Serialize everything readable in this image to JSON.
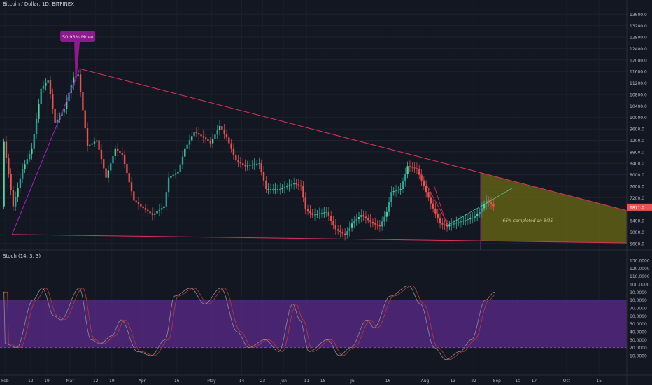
{
  "header": {
    "title": "Bitcoin / Dollar, 1D, BITFINEX"
  },
  "indicator": {
    "title": "Stoch (14, 3, 3)"
  },
  "colors": {
    "background": "#131722",
    "up": "#26a69a",
    "up_bright": "#4fd49b",
    "down": "#ef5350",
    "trendline": "#e0315a",
    "wedge_fill": "#6b6a14",
    "stoch_band": "#5c2a8c",
    "stoch_k": "#8d8d9a",
    "stoch_d": "#c0392b",
    "callout": "#8e1b8e",
    "price_tag": "#ef5350"
  },
  "chart_data": {
    "type": "candlestick",
    "symbol": "Bitcoin / Dollar",
    "interval": "1D",
    "exchange": "BITFINEX",
    "y_axis": {
      "labels": [
        "13600.0",
        "13200.0",
        "12800.0",
        "12400.0",
        "12000.0",
        "11600.0",
        "11200.0",
        "10800.0",
        "10400.0",
        "10000.0",
        "9600.0",
        "9200.0",
        "8800.0",
        "8400.0",
        "8000.0",
        "7600.0",
        "7200.0",
        "6800.0",
        "6400.0",
        "6000.0",
        "5600.0"
      ],
      "ylim": [
        5500,
        13900
      ]
    },
    "x_axis": {
      "labels": [
        "Feb",
        "12",
        "19",
        "Mar",
        "12",
        "19",
        "Apr",
        "16",
        "May",
        "14",
        "23",
        "Jun",
        "11",
        "18",
        "Jul",
        "16",
        "Aug",
        "13",
        "22",
        "Sep",
        "10",
        "17",
        "Oct",
        "15"
      ]
    },
    "current_price": "6871.0",
    "anchor_closes": [
      [
        "2018-02-01",
        9150
      ],
      [
        "2018-02-05",
        6900
      ],
      [
        "2018-02-09",
        8200
      ],
      [
        "2018-02-13",
        8900
      ],
      [
        "2018-02-17",
        11000
      ],
      [
        "2018-02-20",
        11300
      ],
      [
        "2018-02-23",
        9800
      ],
      [
        "2018-02-27",
        10300
      ],
      [
        "2018-03-03",
        11400
      ],
      [
        "2018-03-05",
        11500
      ],
      [
        "2018-03-09",
        9000
      ],
      [
        "2018-03-13",
        9200
      ],
      [
        "2018-03-17",
        7900
      ],
      [
        "2018-03-21",
        8900
      ],
      [
        "2018-03-24",
        8700
      ],
      [
        "2018-03-29",
        7100
      ],
      [
        "2018-04-01",
        6900
      ],
      [
        "2018-04-06",
        6600
      ],
      [
        "2018-04-11",
        6900
      ],
      [
        "2018-04-13",
        7900
      ],
      [
        "2018-04-17",
        8100
      ],
      [
        "2018-04-20",
        8900
      ],
      [
        "2018-04-24",
        9500
      ],
      [
        "2018-04-28",
        9300
      ],
      [
        "2018-05-01",
        9100
      ],
      [
        "2018-05-05",
        9700
      ],
      [
        "2018-05-08",
        9300
      ],
      [
        "2018-05-12",
        8500
      ],
      [
        "2018-05-16",
        8300
      ],
      [
        "2018-05-22",
        8400
      ],
      [
        "2018-05-25",
        7500
      ],
      [
        "2018-05-31",
        7500
      ],
      [
        "2018-06-06",
        7700
      ],
      [
        "2018-06-09",
        7600
      ],
      [
        "2018-06-11",
        6800
      ],
      [
        "2018-06-14",
        6600
      ],
      [
        "2018-06-20",
        6700
      ],
      [
        "2018-06-24",
        6100
      ],
      [
        "2018-06-28",
        5900
      ],
      [
        "2018-07-01",
        6300
      ],
      [
        "2018-07-05",
        6600
      ],
      [
        "2018-07-10",
        6300
      ],
      [
        "2018-07-13",
        6200
      ],
      [
        "2018-07-16",
        6700
      ],
      [
        "2018-07-18",
        7400
      ],
      [
        "2018-07-22",
        7500
      ],
      [
        "2018-07-25",
        8300
      ],
      [
        "2018-07-29",
        8200
      ],
      [
        "2018-08-01",
        7600
      ],
      [
        "2018-08-04",
        7000
      ],
      [
        "2018-08-08",
        6300
      ],
      [
        "2018-08-11",
        6200
      ],
      [
        "2018-08-14",
        6300
      ],
      [
        "2018-08-18",
        6400
      ],
      [
        "2018-08-22",
        6500
      ],
      [
        "2018-08-25",
        6700
      ],
      [
        "2018-08-28",
        7100
      ],
      [
        "2018-08-31",
        6900
      ]
    ],
    "annotations": [
      {
        "text": "50.93% Move",
        "type": "callout"
      },
      {
        "text": "66% completed on 8/25",
        "type": "label"
      }
    ],
    "stochastic": {
      "title": "Stoch (14, 3, 3)",
      "y_axis_labels": [
        "130.0000",
        "120.0000",
        "110.0000",
        "100.0000",
        "90.0000",
        "80.0000",
        "70.0000",
        "60.0000",
        "50.0000",
        "40.0000",
        "30.0000",
        "20.0000",
        "10.0000"
      ],
      "band": [
        20,
        80
      ],
      "k_anchors": [
        [
          "2018-02-01",
          25
        ],
        [
          "2018-02-06",
          20
        ],
        [
          "2018-02-13",
          80
        ],
        [
          "2018-02-17",
          95
        ],
        [
          "2018-02-22",
          60
        ],
        [
          "2018-02-25",
          55
        ],
        [
          "2018-03-05",
          95
        ],
        [
          "2018-03-10",
          30
        ],
        [
          "2018-03-14",
          25
        ],
        [
          "2018-03-19",
          35
        ],
        [
          "2018-03-23",
          55
        ],
        [
          "2018-03-30",
          15
        ],
        [
          "2018-04-05",
          10
        ],
        [
          "2018-04-11",
          30
        ],
        [
          "2018-04-15",
          85
        ],
        [
          "2018-04-22",
          95
        ],
        [
          "2018-04-28",
          75
        ],
        [
          "2018-05-05",
          95
        ],
        [
          "2018-05-12",
          40
        ],
        [
          "2018-05-17",
          20
        ],
        [
          "2018-05-24",
          30
        ],
        [
          "2018-05-30",
          15
        ],
        [
          "2018-06-05",
          75
        ],
        [
          "2018-06-08",
          55
        ],
        [
          "2018-06-12",
          15
        ],
        [
          "2018-06-20",
          30
        ],
        [
          "2018-06-25",
          10
        ],
        [
          "2018-06-30",
          20
        ],
        [
          "2018-07-07",
          55
        ],
        [
          "2018-07-10",
          45
        ],
        [
          "2018-07-17",
          85
        ],
        [
          "2018-07-25",
          98
        ],
        [
          "2018-07-30",
          75
        ],
        [
          "2018-08-05",
          20
        ],
        [
          "2018-08-10",
          5
        ],
        [
          "2018-08-16",
          15
        ],
        [
          "2018-08-21",
          30
        ],
        [
          "2018-08-27",
          80
        ],
        [
          "2018-08-31",
          90
        ]
      ]
    }
  }
}
